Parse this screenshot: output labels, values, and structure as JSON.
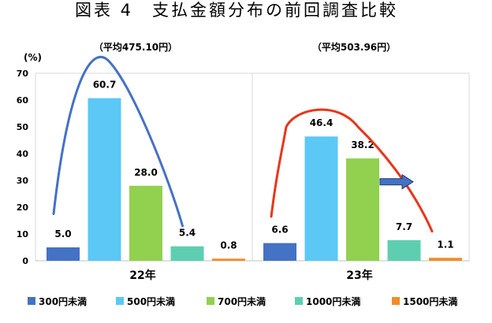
{
  "chart_data": {
    "type": "bar",
    "title": "図表 4　支払金額分布の前回調査比較",
    "unit_label": "(%)",
    "ylim": [
      0,
      70
    ],
    "yticks": [
      0,
      10,
      20,
      30,
      40,
      50,
      60,
      70
    ],
    "grid": false,
    "legend_position": "bottom",
    "categories": [
      "300円未満",
      "500円未満",
      "700円未満",
      "1000円未満",
      "1500円未満"
    ],
    "colors": [
      "#4472C4",
      "#5BC8F5",
      "#92D050",
      "#5DCFB0",
      "#F28C28"
    ],
    "groups": [
      {
        "name": "22年",
        "note": "（平均475.10円）",
        "values": [
          5.0,
          60.7,
          28.0,
          5.4,
          0.8
        ],
        "labels": [
          "5.0",
          "60.7",
          "28.0",
          "5.4",
          "0.8"
        ]
      },
      {
        "name": "23年",
        "note": "（平均503.96円）",
        "values": [
          6.6,
          46.4,
          38.2,
          7.7,
          1.1
        ],
        "labels": [
          "6.6",
          "46.4",
          "38.2",
          "7.7",
          "1.1"
        ]
      }
    ],
    "annotations": {
      "curve_colors": [
        "#4472C4",
        "#E8361A"
      ],
      "arrow_color": "#4472C4",
      "arrow_direction": "right"
    }
  }
}
